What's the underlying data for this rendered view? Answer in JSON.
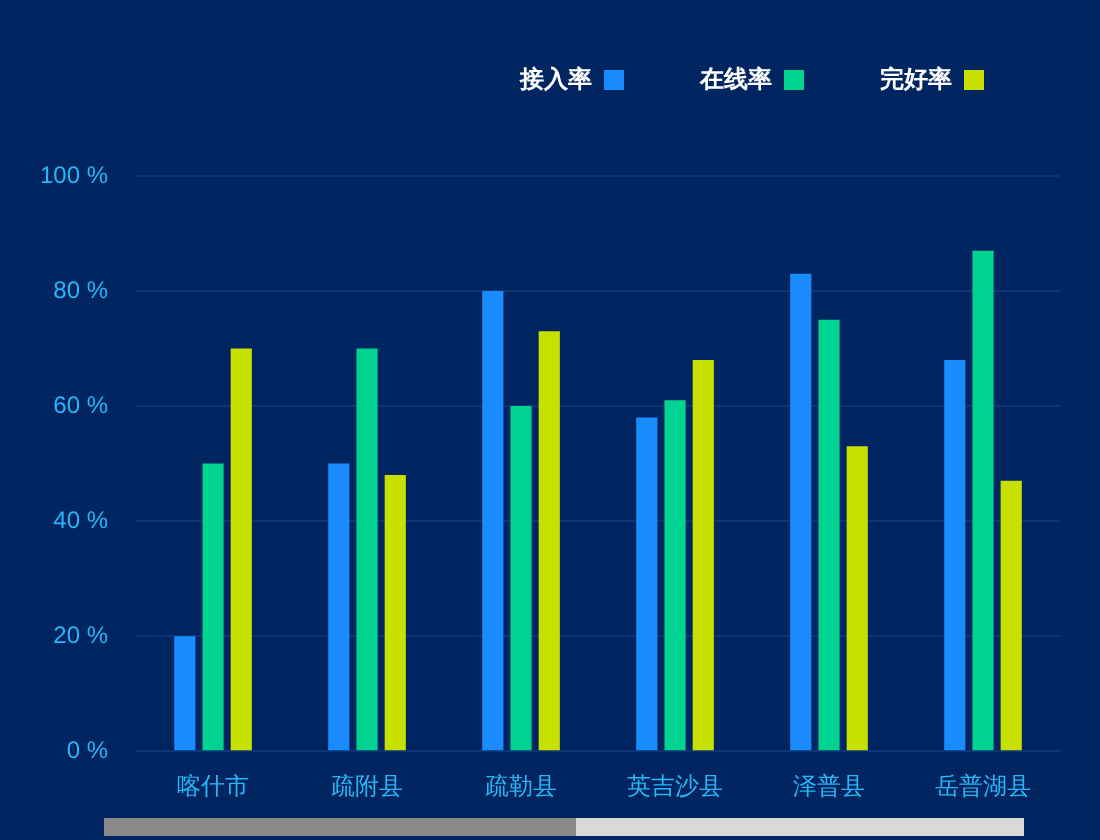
{
  "chart_data": {
    "type": "bar",
    "categories": [
      "喀什市",
      "疏附县",
      "疏勒县",
      "英吉沙县",
      "泽普县",
      "岳普湖县"
    ],
    "series": [
      {
        "name": "接入率",
        "color": "#1a8cff",
        "values": [
          20,
          50,
          80,
          58,
          83,
          68
        ]
      },
      {
        "name": "在线率",
        "color": "#00d490",
        "values": [
          50,
          70,
          60,
          61,
          75,
          87
        ]
      },
      {
        "name": "完好率",
        "color": "#c8e000",
        "values": [
          70,
          48,
          73,
          68,
          53,
          47
        ]
      }
    ],
    "ylim": [
      0,
      100
    ],
    "yticks": [
      {
        "value": 0,
        "label": "0 %"
      },
      {
        "value": 20,
        "label": "20 %"
      },
      {
        "value": 40,
        "label": "40 %"
      },
      {
        "value": 60,
        "label": "60 %"
      },
      {
        "value": 80,
        "label": "80 %"
      },
      {
        "value": 100,
        "label": "100 %"
      }
    ],
    "grid": "y",
    "legend": "top right"
  }
}
